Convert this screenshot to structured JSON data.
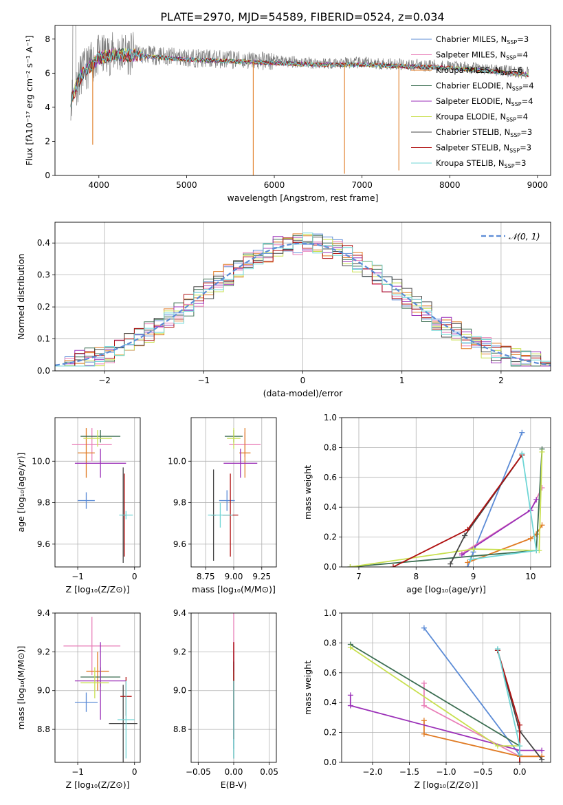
{
  "figure_title": "PLATE=2970, MJD=54589, FIBERID=0524, z=0.034",
  "colors": [
    "#5b8bd6",
    "#e97fb8",
    "#e07b24",
    "#3c6e52",
    "#9b30b8",
    "#c9e050",
    "#444444",
    "#b01010",
    "#6fd6d6"
  ],
  "chart_data": [
    {
      "id": "spectrum",
      "type": "line",
      "xlabel": "wavelength [Angstrom, rest frame]",
      "ylabel": "Flux [fλ10⁻¹⁷ erg cm⁻² s⁻¹ A⁻¹]",
      "xlim": [
        3500,
        9150
      ],
      "ylim": [
        0,
        8.8
      ],
      "xticks": [
        4000,
        5000,
        6000,
        7000,
        8000,
        9000
      ],
      "yticks": [
        0,
        2,
        4,
        6,
        8
      ],
      "grid": false,
      "legend": "top-right",
      "data_x_range": [
        3680,
        8900
      ],
      "data_trend": {
        "x": [
          3680,
          3800,
          4000,
          4200,
          4500,
          5000,
          5500,
          6000,
          6500,
          7000,
          7500,
          8000,
          8500,
          8900
        ],
        "y": [
          4.5,
          6.0,
          7.0,
          7.2,
          7.1,
          6.9,
          6.8,
          6.7,
          6.6,
          6.6,
          6.5,
          6.4,
          6.2,
          6.0
        ]
      },
      "dips": [
        {
          "x": 5760,
          "y": 0.0
        },
        {
          "x": 6800,
          "y": 0.1
        },
        {
          "x": 7420,
          "y": 0.3
        },
        {
          "x": 3930,
          "y": 1.8
        }
      ],
      "series": [
        {
          "name": "Chabrier MILES, N",
          "sub": "SSP",
          "suffix": "=3"
        },
        {
          "name": "Salpeter MILES, N",
          "sub": "SSP",
          "suffix": "=4"
        },
        {
          "name": "Kroupa MILES, N",
          "sub": "SSP",
          "suffix": "=6"
        },
        {
          "name": "Chabrier ELODIE, N",
          "sub": "SSP",
          "suffix": "=4"
        },
        {
          "name": "Salpeter ELODIE, N",
          "sub": "SSP",
          "suffix": "=4"
        },
        {
          "name": "Kroupa ELODIE, N",
          "sub": "SSP",
          "suffix": "=4"
        },
        {
          "name": "Chabrier STELIB, N",
          "sub": "SSP",
          "suffix": "=3"
        },
        {
          "name": "Salpeter STELIB, N",
          "sub": "SSP",
          "suffix": "=3"
        },
        {
          "name": "Kroupa STELIB, N",
          "sub": "SSP",
          "suffix": "=3"
        }
      ]
    },
    {
      "id": "residuals",
      "type": "line",
      "xlabel": "(data-model)/error",
      "ylabel": "Normed distribution",
      "xlim": [
        -2.5,
        2.5
      ],
      "ylim": [
        0,
        0.465
      ],
      "xticks": [
        -2,
        -1,
        0,
        1,
        2
      ],
      "yticks": [
        0.0,
        0.1,
        0.2,
        0.3,
        0.4
      ],
      "grid": true,
      "legend": "top-right",
      "legend_label": "𝒩(0, 1)",
      "bin_width": 0.1
    },
    {
      "id": "age_Z",
      "type": "scatter",
      "xlabel": "Z [log₁₀(Z/Z⊙)]",
      "ylabel": "age  [log₁₀(age/yr)]",
      "xlim": [
        -1.4,
        0.1
      ],
      "ylim": [
        9.49,
        10.21
      ],
      "xticks": [
        -1,
        0
      ],
      "yticks": [
        9.6,
        9.8,
        10.0
      ],
      "grid": true,
      "points": [
        {
          "x": -0.85,
          "y": 9.81,
          "xerr": 0.15,
          "yerr": 0.04
        },
        {
          "x": -0.75,
          "y": 10.08,
          "xerr": 0.35,
          "yerr": 0.08
        },
        {
          "x": -0.85,
          "y": 10.04,
          "xerr": 0.15,
          "yerr": 0.12
        },
        {
          "x": -0.6,
          "y": 10.12,
          "xerr": 0.35,
          "yerr": 0.03
        },
        {
          "x": -0.6,
          "y": 9.99,
          "xerr": 0.45,
          "yerr": 0.07
        },
        {
          "x": -0.65,
          "y": 10.11,
          "xerr": 0.25,
          "yerr": 0.04
        },
        {
          "x": -0.2,
          "y": 9.74,
          "xerr": 0.02,
          "yerr": 0.23
        },
        {
          "x": -0.18,
          "y": 9.74,
          "xerr": 0.02,
          "yerr": 0.2
        },
        {
          "x": -0.15,
          "y": 9.74,
          "xerr": 0.12,
          "yerr": 0.02
        }
      ]
    },
    {
      "id": "age_mass",
      "type": "scatter",
      "xlabel": "mass [log₁₀(M/M⊙)]",
      "ylabel": "",
      "xlim": [
        8.62,
        9.38
      ],
      "ylim": [
        9.49,
        10.21
      ],
      "xticks": [
        8.75,
        9.0,
        9.25
      ],
      "yticks": [
        9.6,
        9.8,
        10.0
      ],
      "grid": true,
      "points": [
        {
          "x": 8.94,
          "y": 9.81,
          "xerr": 0.07,
          "yerr": 0.05
        },
        {
          "x": 9.1,
          "y": 10.08,
          "xerr": 0.14,
          "yerr": 0.06
        },
        {
          "x": 9.1,
          "y": 10.04,
          "xerr": 0.05,
          "yerr": 0.12
        },
        {
          "x": 9.0,
          "y": 10.12,
          "xerr": 0.08,
          "yerr": 0.03
        },
        {
          "x": 9.06,
          "y": 9.99,
          "xerr": 0.15,
          "yerr": 0.07
        },
        {
          "x": 9.0,
          "y": 10.11,
          "xerr": 0.06,
          "yerr": 0.05
        },
        {
          "x": 8.82,
          "y": 9.74,
          "xerr": 0.02,
          "yerr": 0.22
        },
        {
          "x": 8.97,
          "y": 9.74,
          "xerr": 0.07,
          "yerr": 0.2
        },
        {
          "x": 8.88,
          "y": 9.74,
          "xerr": 0.11,
          "yerr": 0.06
        }
      ]
    },
    {
      "id": "weight_age",
      "type": "line",
      "xlabel": "age  [log₁₀(age/yr)]",
      "ylabel": "mass weight",
      "xlim": [
        6.7,
        10.35
      ],
      "ylim": [
        0,
        1.0
      ],
      "xticks": [
        7,
        8,
        9,
        10
      ],
      "yticks": [
        0.0,
        0.2,
        0.4,
        0.6,
        0.8,
        1.0
      ],
      "grid": true,
      "series": [
        {
          "x": [
            8.9,
            9.0,
            9.85
          ],
          "y": [
            0.0,
            0.1,
            0.9
          ]
        },
        {
          "x": [
            8.8,
            10.0,
            10.2
          ],
          "y": [
            0.09,
            0.38,
            0.53
          ]
        },
        {
          "x": [
            8.9,
            10.0,
            10.1,
            10.2
          ],
          "y": [
            0.03,
            0.19,
            0.22,
            0.28
          ]
        },
        {
          "x": [
            6.85,
            10.1,
            10.2
          ],
          "y": [
            0.0,
            0.11,
            0.79
          ]
        },
        {
          "x": [
            8.8,
            10.0,
            10.1
          ],
          "y": [
            0.08,
            0.38,
            0.45
          ]
        },
        {
          "x": [
            6.85,
            9.0,
            10.15,
            10.2
          ],
          "y": [
            0.0,
            0.12,
            0.11,
            0.77
          ]
        },
        {
          "x": [
            8.6,
            8.85,
            9.85
          ],
          "y": [
            0.02,
            0.21,
            0.75
          ]
        },
        {
          "x": [
            7.6,
            8.9,
            9.85
          ],
          "y": [
            0.0,
            0.25,
            0.75
          ]
        },
        {
          "x": [
            8.95,
            10.1,
            9.85
          ],
          "y": [
            0.05,
            0.11,
            0.76
          ]
        }
      ]
    },
    {
      "id": "mass_Z",
      "type": "scatter",
      "xlabel": "Z [log₁₀(Z/Z⊙)]",
      "ylabel": "mass [log₁₀(M/M⊙)]",
      "xlim": [
        -1.4,
        0.1
      ],
      "ylim": [
        8.63,
        9.4
      ],
      "xticks": [
        -1,
        0
      ],
      "yticks": [
        8.8,
        9.0,
        9.2,
        9.4
      ],
      "grid": true,
      "points": [
        {
          "x": -0.85,
          "y": 8.94,
          "xerr": 0.2,
          "yerr": 0.05
        },
        {
          "x": -0.75,
          "y": 9.23,
          "xerr": 0.5,
          "yerr": 0.15
        },
        {
          "x": -0.65,
          "y": 9.1,
          "xerr": 0.2,
          "yerr": 0.1
        },
        {
          "x": -0.6,
          "y": 9.07,
          "xerr": 0.35,
          "yerr": 0.05
        },
        {
          "x": -0.6,
          "y": 9.05,
          "xerr": 0.45,
          "yerr": 0.2
        },
        {
          "x": -0.7,
          "y": 9.04,
          "xerr": 0.25,
          "yerr": 0.08
        },
        {
          "x": -0.2,
          "y": 8.83,
          "xerr": 0.25,
          "yerr": 0.2
        },
        {
          "x": -0.15,
          "y": 8.97,
          "xerr": 0.1,
          "yerr": 0.1
        },
        {
          "x": -0.15,
          "y": 8.85,
          "xerr": 0.15,
          "yerr": 0.2
        }
      ]
    },
    {
      "id": "mass_EBV",
      "type": "scatter",
      "xlabel": "E(B-V)",
      "ylabel": "",
      "xlim": [
        -0.06,
        0.06
      ],
      "ylim": [
        8.63,
        9.4
      ],
      "xticks": [
        -0.05,
        0.0,
        0.05
      ],
      "yticks": [
        8.8,
        9.0,
        9.2,
        9.4
      ],
      "grid": true,
      "points": [
        {
          "x": 0.0,
          "y": 8.95,
          "yerr": 0.25
        },
        {
          "x": 0.0,
          "y": 9.1,
          "yerr": 0.3
        },
        {
          "x": 0.0,
          "y": 9.05,
          "yerr": 0.2
        },
        {
          "x": 0.0,
          "y": 8.95,
          "yerr": 0.2
        },
        {
          "x": 0.0,
          "y": 9.05,
          "yerr": 0.2
        },
        {
          "x": 0.0,
          "y": 9.0,
          "yerr": 0.1
        },
        {
          "x": 0.0,
          "y": 8.9,
          "yerr": 0.25
        },
        {
          "x": 0.0,
          "y": 9.0,
          "yerr": 0.25
        },
        {
          "x": 0.0,
          "y": 8.85,
          "yerr": 0.2
        }
      ]
    },
    {
      "id": "weight_Z",
      "type": "line",
      "xlabel": "Z [log₁₀(Z/Z⊙)]",
      "ylabel": "mass weight",
      "xlim": [
        -2.42,
        0.42
      ],
      "ylim": [
        0,
        1.0
      ],
      "xticks": [
        -2.0,
        -1.5,
        -1.0,
        -0.5,
        0.0
      ],
      "yticks": [
        0.0,
        0.2,
        0.4,
        0.6,
        0.8,
        1.0
      ],
      "grid": true,
      "series": [
        {
          "x": [
            -1.3,
            0.0,
            0.0
          ],
          "y": [
            0.9,
            0.05,
            0.05
          ]
        },
        {
          "x": [
            -1.3,
            -1.3,
            0.0,
            0.3
          ],
          "y": [
            0.53,
            0.38,
            0.04,
            0.04
          ]
        },
        {
          "x": [
            -1.3,
            -1.3,
            0.0,
            0.3
          ],
          "y": [
            0.28,
            0.19,
            0.04,
            0.04
          ]
        },
        {
          "x": [
            -2.3,
            0.0,
            0.0
          ],
          "y": [
            0.79,
            0.11,
            0.08
          ]
        },
        {
          "x": [
            -2.3,
            -2.3,
            0.0,
            0.3
          ],
          "y": [
            0.45,
            0.38,
            0.08,
            0.08
          ]
        },
        {
          "x": [
            -2.3,
            -0.3,
            0.0
          ],
          "y": [
            0.77,
            0.11,
            0.11
          ]
        },
        {
          "x": [
            -0.3,
            0.0,
            0.3
          ],
          "y": [
            0.75,
            0.21,
            0.02
          ]
        },
        {
          "x": [
            -0.3,
            0.0,
            0.0
          ],
          "y": [
            0.75,
            0.25,
            0.0
          ]
        },
        {
          "x": [
            -0.3,
            0.0,
            0.0
          ],
          "y": [
            0.76,
            0.11,
            0.05
          ]
        }
      ]
    }
  ]
}
